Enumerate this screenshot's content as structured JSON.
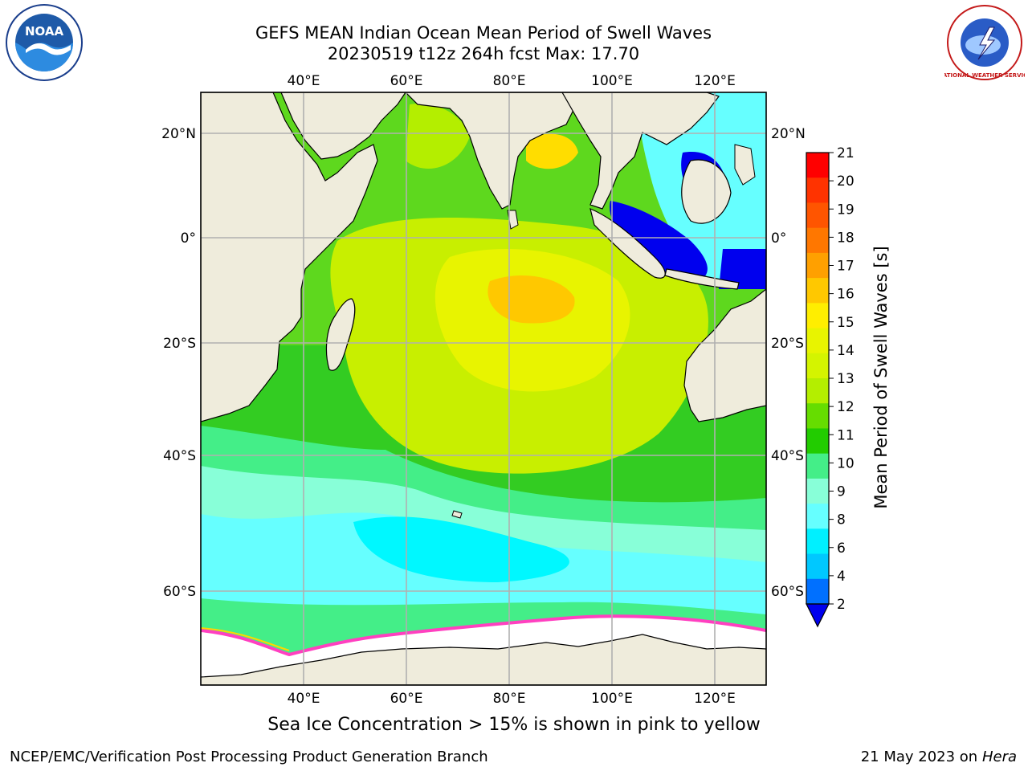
{
  "header": {
    "title_line1": "GEFS MEAN Indian Ocean Mean Period of Swell Waves",
    "title_line2": "20230519 t12z 264h fcst   Max: 17.70"
  },
  "map": {
    "lon_labels": [
      "40°E",
      "60°E",
      "80°E",
      "100°E",
      "120°E"
    ],
    "lat_labels": [
      "20°N",
      "0°",
      "20°S",
      "40°S",
      "60°S"
    ],
    "colors": {
      "land": "#efecdc",
      "sea_ice": "#ffffff",
      "ice_edge": "#ff40c0",
      "grid": "#b0b0b0"
    }
  },
  "colorbar": {
    "label": "Mean Period of Swell Waves [s]",
    "ticks": [
      "21",
      "20",
      "19",
      "18",
      "17",
      "16",
      "15",
      "14",
      "13",
      "12",
      "11",
      "10",
      "9",
      "8",
      "6",
      "4",
      "2"
    ],
    "colors": [
      "#ff0000",
      "#ff3300",
      "#ff5500",
      "#ff7700",
      "#ffa000",
      "#ffc800",
      "#ffee00",
      "#e8f400",
      "#d4f400",
      "#b4ee00",
      "#66dd00",
      "#22cc00",
      "#44ee88",
      "#88ffd8",
      "#66ffff",
      "#00f0ff",
      "#00c8ff",
      "#0070ff"
    ],
    "extend_color": "#0000ee"
  },
  "notes": {
    "sea_ice": "Sea Ice Concentration > 15% is shown in pink to yellow"
  },
  "footer": {
    "left": "NCEP/EMC/Verification Post Processing Product Generation Branch",
    "date": "21 May 2023 on",
    "machine": "Hera"
  },
  "logos": {
    "noaa_text": "NOAA",
    "nws_text": "NATIONAL WEATHER SERVICE"
  }
}
